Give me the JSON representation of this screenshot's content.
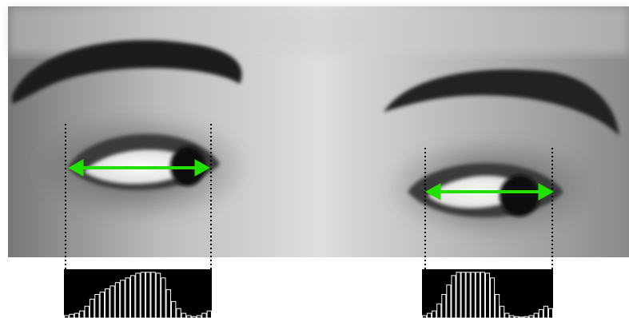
{
  "histograms": [
    {
      "values": [
        0.05,
        0.08,
        0.1,
        0.15,
        0.25,
        0.4,
        0.5,
        0.55,
        0.62,
        0.68,
        0.75,
        0.8,
        0.85,
        0.9,
        0.95,
        0.97,
        0.97,
        0.97,
        0.95,
        0.85,
        0.6,
        0.35,
        0.2,
        0.1,
        0.05,
        0.03,
        0.05,
        0.1,
        0.15
      ]
    },
    {
      "values": [
        0.05,
        0.1,
        0.15,
        0.3,
        0.5,
        0.7,
        0.9,
        0.97,
        0.97,
        0.97,
        0.97,
        0.97,
        0.97,
        0.95,
        0.85,
        0.5,
        0.25,
        0.1,
        0.05,
        0.03,
        0.02,
        0.03,
        0.05,
        0.1,
        0.18,
        0.25,
        0.2
      ]
    }
  ]
}
